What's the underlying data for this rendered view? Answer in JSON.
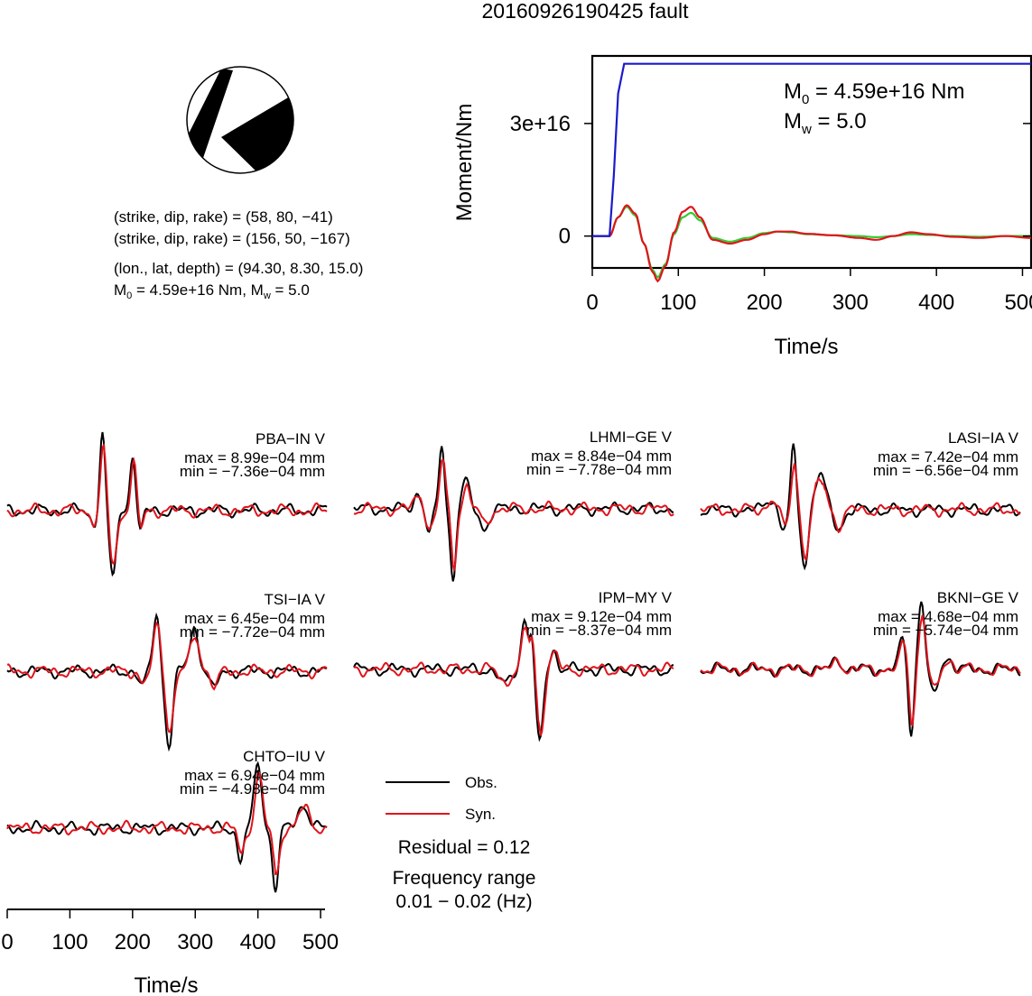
{
  "event_title": "20160926190425 fault",
  "colors": {
    "observed": "#000000",
    "synthetic": "#e0141c",
    "moment_cumulative": "#1a1acc",
    "moment_rate_a": "#e0141c",
    "moment_rate_b": "#33cc33"
  },
  "beachball": {
    "nodal_plane_1": "(strike, dip, rake) = (58, 80, −41)",
    "nodal_plane_2": "(strike, dip, rake) = (156, 50, −167)",
    "location": "(lon., lat, depth) = (94.30, 8.30, 15.0)",
    "moment_line": {
      "m": "M",
      "m_sub": "0",
      "m_val": " = 4.59e+16 Nm, ",
      "w": "M",
      "w_sub": "w",
      "w_val": " = 5.0"
    }
  },
  "moment_panel": {
    "ylabel": "Moment/Nm",
    "xlabel": "Time/s",
    "m0": {
      "m": "M",
      "sub": "0",
      "val": " = 4.59e+16 Nm"
    },
    "mw": {
      "m": "M",
      "sub": "w",
      "val": " = 5.0"
    },
    "yticks": [
      {
        "value": 0,
        "label": "0"
      },
      {
        "value": 3e+16,
        "label": "3e+16"
      }
    ],
    "xticks": [
      {
        "value": 0,
        "label": "0"
      },
      {
        "value": 100,
        "label": "100"
      },
      {
        "value": 200,
        "label": "200"
      },
      {
        "value": 300,
        "label": "300"
      },
      {
        "value": 400,
        "label": "400"
      },
      {
        "value": 500,
        "label": "500"
      }
    ]
  },
  "chart_data": {
    "type": "line",
    "title": "20160926190425 fault",
    "moment_function": {
      "xlabel": "Time/s",
      "ylabel": "Moment/Nm",
      "xlim": [
        0,
        510
      ],
      "ylim": [
        -8500000000000000.0,
        4.8e+16
      ],
      "cumulative_moment": {
        "x": [
          0,
          20,
          25,
          30,
          37,
          510
        ],
        "y": [
          0,
          0,
          1.6e+16,
          3.8e+16,
          4.59e+16,
          4.59e+16
        ]
      },
      "moment_rate_red": {
        "x": [
          0,
          20,
          30,
          40,
          50,
          60,
          70,
          76,
          85,
          95,
          105,
          115,
          125,
          140,
          160,
          180,
          200,
          215,
          230,
          250,
          280,
          310,
          330,
          350,
          370,
          390,
          420,
          450,
          480,
          510
        ],
        "y": [
          0,
          0,
          5000000000000000.0,
          8200000000000000.0,
          6000000000000000.0,
          -2000000000000000.0,
          -9500000000000000.0,
          -1.2e+16,
          -8000000000000000.0,
          1000000000000000.0,
          6500000000000000.0,
          7800000000000000.0,
          5000000000000000.0,
          -1000000000000000.0,
          -2000000000000000.0,
          -1000000000000000.0,
          500000000000000.0,
          1200000000000000.0,
          1200000000000000.0,
          600000000000000.0,
          200000000000000.0,
          -500000000000000.0,
          -1000000000000000.0,
          0.0,
          1000000000000000.0,
          500000000000000.0,
          -200000000000000.0,
          -500000000000000.0,
          0.0,
          -500000000000000.0
        ]
      },
      "moment_rate_green": {
        "x": [
          0,
          20,
          30,
          40,
          50,
          60,
          70,
          76,
          85,
          95,
          105,
          115,
          125,
          140,
          160,
          180,
          200,
          215,
          230,
          250,
          280,
          310,
          330,
          350,
          370,
          390,
          420,
          450,
          480,
          510
        ],
        "y": [
          0,
          0,
          5000000000000000.0,
          7800000000000000.0,
          5500000000000000.0,
          -2000000000000000.0,
          -9000000000000000.0,
          -1.1e+16,
          -7500000000000000.0,
          500000000000000.0,
          5000000000000000.0,
          6200000000000000.0,
          4200000000000000.0,
          -500000000000000.0,
          -1500000000000000.0,
          -500000000000000.0,
          800000000000000.0,
          1200000000000000.0,
          1000000000000000.0,
          500000000000000.0,
          200000000000000.0,
          0.0,
          -300000000000000.0,
          0.0,
          500000000000000.0,
          300000000000000.0,
          0.0,
          -200000000000000.0,
          0.0,
          0.0
        ]
      }
    },
    "waveforms": {
      "xlabel": "Time/s",
      "xlim": [
        0,
        510
      ],
      "xticks": [
        0,
        100,
        200,
        300,
        400,
        500
      ],
      "legend": [
        "Obs.",
        "Syn."
      ],
      "stations": [
        {
          "name": "PBA−IN V",
          "max": "max = 8.99e−04 mm",
          "min": "min = −7.36e−04 mm",
          "events": [
            {
              "t": 138,
              "w": 7,
              "a": -0.35
            },
            {
              "t": 152,
              "w": 6,
              "a": 2.0
            },
            {
              "t": 168,
              "w": 8,
              "a": -1.65
            },
            {
              "t": 200,
              "w": 6,
              "a": 1.5
            },
            {
              "t": 212,
              "w": 6,
              "a": -0.55
            }
          ]
        },
        {
          "name": "LHMI−GE V",
          "max": "max = 8.84e−04 mm",
          "min": "min = −7.78e−04 mm",
          "events": [
            {
              "t": 102,
              "w": 9,
              "a": 0.4
            },
            {
              "t": 120,
              "w": 8,
              "a": -0.6
            },
            {
              "t": 140,
              "w": 6,
              "a": 1.6
            },
            {
              "t": 158,
              "w": 6,
              "a": -1.8
            },
            {
              "t": 178,
              "w": 8,
              "a": 0.7
            },
            {
              "t": 208,
              "w": 10,
              "a": -0.5
            }
          ]
        },
        {
          "name": "LASI−IA V",
          "max": "max = 7.42e−04 mm",
          "min": "min = −6.56e−04 mm",
          "events": [
            {
              "t": 112,
              "w": 10,
              "a": 0.3
            },
            {
              "t": 132,
              "w": 8,
              "a": -0.5
            },
            {
              "t": 148,
              "w": 6,
              "a": 1.5
            },
            {
              "t": 166,
              "w": 8,
              "a": -1.4
            },
            {
              "t": 190,
              "w": 12,
              "a": 0.9
            },
            {
              "t": 220,
              "w": 10,
              "a": -0.5
            }
          ]
        },
        {
          "name": "TSI−IA V",
          "max": "max = 6.45e−04 mm",
          "min": "min = −7.72e−04 mm",
          "events": [
            {
              "t": 215,
              "w": 7,
              "a": -0.4
            },
            {
              "t": 238,
              "w": 7,
              "a": 1.5
            },
            {
              "t": 258,
              "w": 8,
              "a": -1.9
            },
            {
              "t": 298,
              "w": 10,
              "a": 1.1
            },
            {
              "t": 330,
              "w": 8,
              "a": -0.5
            }
          ]
        },
        {
          "name": "IPM−MY V",
          "max": "max = 9.12e−04 mm",
          "min": "min = −8.37e−04 mm",
          "events": [
            {
              "t": 240,
              "w": 12,
              "a": -0.4
            },
            {
              "t": 272,
              "w": 7,
              "a": 1.3
            },
            {
              "t": 284,
              "w": 5,
              "a": 1.0
            },
            {
              "t": 296,
              "w": 8,
              "a": -1.9
            },
            {
              "t": 318,
              "w": 8,
              "a": 0.5
            }
          ]
        },
        {
          "name": "BKNI−GE V",
          "max": "max = 4.68e−04 mm",
          "min": "min = −5.74e−04 mm",
          "events": [
            {
              "t": 218,
              "w": 8,
              "a": 0.3
            },
            {
              "t": 322,
              "w": 7,
              "a": 0.8
            },
            {
              "t": 336,
              "w": 6,
              "a": -1.6
            },
            {
              "t": 352,
              "w": 7,
              "a": 1.8
            },
            {
              "t": 372,
              "w": 8,
              "a": -0.7
            },
            {
              "t": 395,
              "w": 10,
              "a": 0.3
            }
          ]
        },
        {
          "name": "CHTO−IU V",
          "max": "max = 6.94e−04 mm",
          "min": "min = −4.98e−04 mm",
          "events": [
            {
              "t": 372,
              "w": 7,
              "a": -0.8
            },
            {
              "t": 400,
              "w": 8,
              "a": 1.7
            },
            {
              "t": 428,
              "w": 7,
              "a": -1.5
            },
            {
              "t": 472,
              "w": 12,
              "a": 0.6
            }
          ]
        }
      ]
    }
  },
  "legend": {
    "obs": "Obs.",
    "syn": "Syn."
  },
  "residual": "Residual = 0.12",
  "frequency_label": "Frequency range",
  "frequency_range": "0.01 − 0.02 (Hz)",
  "waveform_axis": {
    "xlabel": "Time/s",
    "ticks": [
      {
        "value": 0,
        "label": "0"
      },
      {
        "value": 100,
        "label": "100"
      },
      {
        "value": 200,
        "label": "200"
      },
      {
        "value": 300,
        "label": "300"
      },
      {
        "value": 400,
        "label": "400"
      },
      {
        "value": 500,
        "label": "500"
      }
    ]
  }
}
